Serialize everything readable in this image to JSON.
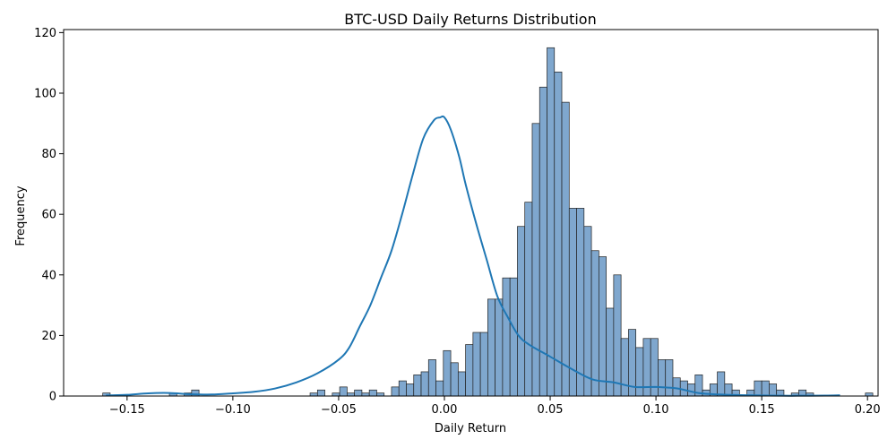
{
  "chart_data": {
    "type": "bar",
    "title": "BTC-USD Daily Returns Distribution",
    "xlabel": "Daily Return",
    "ylabel": "Frequency",
    "xlim": [
      -0.18,
      0.205
    ],
    "ylim": [
      0,
      121
    ],
    "xticks": [
      -0.15,
      -0.1,
      -0.05,
      0.0,
      0.05,
      0.1,
      0.15,
      0.2
    ],
    "xtick_labels": [
      "−0.15",
      "−0.10",
      "−0.05",
      "0.00",
      "0.05",
      "0.10",
      "0.15",
      "0.20"
    ],
    "yticks": [
      0,
      20,
      40,
      60,
      80,
      100,
      120
    ],
    "ytick_labels": [
      "0",
      "20",
      "40",
      "60",
      "80",
      "100",
      "120"
    ],
    "bins": {
      "start": -0.1615,
      "width": 0.0035,
      "counts": [
        1,
        0,
        0,
        0,
        0,
        0,
        0,
        0,
        0,
        1,
        0,
        1,
        2,
        0,
        0,
        0,
        0,
        0,
        0,
        0,
        0,
        0,
        0,
        0,
        0,
        0,
        0,
        0,
        1,
        2,
        0,
        1,
        3,
        1,
        2,
        1,
        2,
        1,
        0,
        3,
        5,
        4,
        7,
        8,
        12,
        5,
        15,
        11,
        8,
        17,
        21,
        21,
        32,
        32,
        39,
        39,
        56,
        64,
        90,
        102,
        115,
        107,
        97,
        62,
        62,
        56,
        48,
        46,
        29,
        40,
        19,
        22,
        16,
        19,
        19,
        12,
        12,
        6,
        5,
        4,
        7,
        2,
        4,
        8,
        4,
        2,
        0,
        2,
        5,
        5,
        4,
        2,
        0,
        1,
        2,
        1,
        0,
        0,
        0,
        0,
        0,
        0,
        0,
        1,
        0,
        0,
        0,
        0,
        0,
        0,
        0,
        0,
        0,
        0,
        0,
        0,
        0,
        0,
        0,
        1
      ]
    },
    "kde": {
      "x": [
        -0.16,
        -0.15,
        -0.14,
        -0.13,
        -0.12,
        -0.11,
        -0.1,
        -0.09,
        -0.08,
        -0.07,
        -0.06,
        -0.05,
        -0.045,
        -0.04,
        -0.035,
        -0.03,
        -0.025,
        -0.02,
        -0.015,
        -0.01,
        -0.005,
        -0.002,
        0.0,
        0.003,
        0.007,
        0.01,
        0.015,
        0.02,
        0.025,
        0.03,
        0.035,
        0.04,
        0.05,
        0.06,
        0.07,
        0.08,
        0.09,
        0.1,
        0.11,
        0.12,
        0.13,
        0.14,
        0.15,
        0.16,
        0.17,
        0.18,
        0.187
      ],
      "y": [
        0.2,
        0.4,
        0.9,
        1.0,
        0.6,
        0.5,
        0.9,
        1.4,
        2.5,
        4.5,
        7.5,
        12,
        16,
        23,
        30,
        39,
        48,
        60,
        73,
        85,
        91,
        92,
        92,
        88,
        79,
        70,
        57,
        45,
        33,
        26,
        20,
        17,
        13,
        9,
        5.5,
        4.5,
        3,
        3,
        2.5,
        1,
        0.5,
        0.3,
        0.2,
        0.1,
        0.1,
        0.15,
        0.25
      ]
    },
    "colors": {
      "bar": "#7FA7CE",
      "edge": "#222222",
      "kde": "#1F77B4"
    },
    "grid": false,
    "legend": "none"
  }
}
